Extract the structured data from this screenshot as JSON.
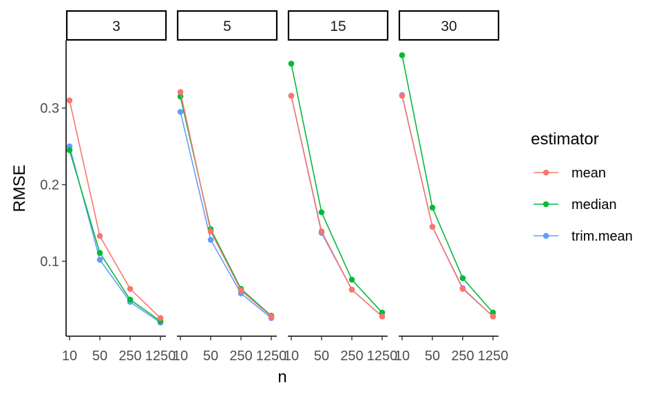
{
  "chart_data": {
    "type": "line",
    "xlabel": "n",
    "ylabel": "RMSE",
    "ylim": [
      0.01,
      0.39
    ],
    "yticks": [
      0.1,
      0.2,
      0.3
    ],
    "ytick_labels": [
      "0.1",
      "0.2",
      "0.3"
    ],
    "x": [
      10,
      50,
      250,
      1250
    ],
    "xtick_labels": [
      "10",
      "50",
      "250",
      "1250"
    ],
    "grid": false,
    "legend": {
      "title": "estimator",
      "position": "right"
    },
    "facets": [
      {
        "label": "3",
        "series": [
          {
            "name": "mean",
            "values": [
              0.31,
              0.133,
              0.064,
              0.026
            ]
          },
          {
            "name": "median",
            "values": [
              0.245,
              0.111,
              0.05,
              0.022
            ]
          },
          {
            "name": "trim.mean",
            "values": [
              0.25,
              0.102,
              0.047,
              0.02
            ]
          }
        ]
      },
      {
        "label": "5",
        "series": [
          {
            "name": "mean",
            "values": [
              0.321,
              0.139,
              0.062,
              0.028
            ]
          },
          {
            "name": "median",
            "values": [
              0.315,
              0.142,
              0.064,
              0.029
            ]
          },
          {
            "name": "trim.mean",
            "values": [
              0.295,
              0.128,
              0.058,
              0.026
            ]
          }
        ]
      },
      {
        "label": "15",
        "series": [
          {
            "name": "mean",
            "values": [
              0.316,
              0.139,
              0.063,
              0.028
            ]
          },
          {
            "name": "median",
            "values": [
              0.358,
              0.164,
              0.076,
              0.033
            ]
          },
          {
            "name": "trim.mean",
            "values": [
              0.316,
              0.137,
              0.063,
              0.028
            ]
          }
        ]
      },
      {
        "label": "30",
        "series": [
          {
            "name": "mean",
            "values": [
              0.316,
              0.145,
              0.064,
              0.028
            ]
          },
          {
            "name": "median",
            "values": [
              0.369,
              0.17,
              0.078,
              0.033
            ]
          },
          {
            "name": "trim.mean",
            "values": [
              0.317,
              0.145,
              0.065,
              0.028
            ]
          }
        ]
      }
    ],
    "colors": {
      "mean": "#F8766D",
      "median": "#00BA38",
      "trim.mean": "#619CFF"
    }
  }
}
